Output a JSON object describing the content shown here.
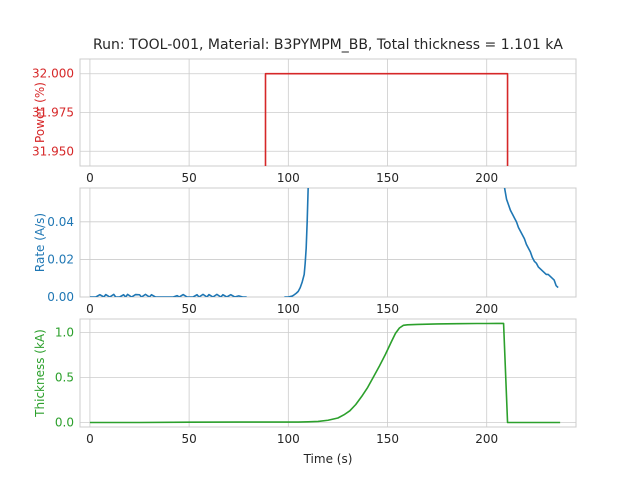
{
  "title": "Run: TOOL-001, Material: B3PYMPM_BB, Total thickness = 1.101 kA",
  "xlabel": "Time (s)",
  "chart_data": [
    {
      "type": "line",
      "ylabel": "Power (%)",
      "color": "#d62728",
      "xlim": [
        -5,
        245
      ],
      "ylim": [
        31.9405,
        32.0095
      ],
      "x_ticks": [
        0,
        50,
        100,
        150,
        200
      ],
      "y_ticks": [
        31.95,
        31.975,
        32.0
      ],
      "y_tick_labels": [
        "31.950",
        "31.975",
        "32.000"
      ],
      "series": [
        {
          "x": [
            88.5,
            88.5,
            209,
            210.5,
            210.5
          ],
          "y": [
            31.9,
            32.0,
            32.0,
            32.0,
            31.9
          ]
        }
      ]
    },
    {
      "type": "line",
      "ylabel": "Rate (A/s)",
      "color": "#1f77b4",
      "xlim": [
        -5,
        245
      ],
      "ylim": [
        0,
        0.058
      ],
      "x_ticks": [
        0,
        50,
        100,
        150,
        200
      ],
      "y_ticks": [
        0.0,
        0.02,
        0.04
      ],
      "y_tick_labels": [
        "0.00",
        "0.02",
        "0.04"
      ],
      "series": [
        {
          "x": [
            0,
            3,
            5,
            7,
            8,
            10,
            12,
            13,
            15,
            17,
            18,
            19,
            21,
            23,
            25,
            26,
            28,
            30,
            31,
            33,
            35,
            37,
            38,
            40,
            42,
            44,
            45,
            47,
            49,
            50,
            52,
            54,
            55,
            57,
            59,
            60,
            62,
            64,
            66,
            67,
            69,
            71,
            73,
            75,
            77,
            79
          ],
          "y": [
            0,
            0,
            0.0012,
            0,
            0.0013,
            0,
            0.0014,
            0,
            0,
            0.0012,
            0,
            0.0014,
            0,
            0.0013,
            0.0012,
            0,
            0.0014,
            0,
            0.0012,
            0,
            0,
            0,
            0,
            0,
            0,
            0.0007,
            0,
            0.0013,
            0,
            0,
            0,
            0.0012,
            0,
            0.0014,
            0,
            0.0013,
            0,
            0.0014,
            0,
            0.0012,
            0,
            0.0012,
            0,
            0.0006,
            0,
            0
          ]
        },
        {
          "x": [
            98,
            100,
            102,
            103,
            104,
            105,
            106,
            107,
            108,
            108.5,
            109,
            109.5,
            110
          ],
          "y": [
            0,
            0,
            0.0005,
            0.0012,
            0.002,
            0.003,
            0.005,
            0.008,
            0.012,
            0.018,
            0.026,
            0.04,
            0.058
          ]
        },
        {
          "x": [
            209,
            210,
            211,
            212,
            213,
            214,
            215,
            216,
            217,
            218,
            219,
            220,
            221,
            222,
            223,
            224,
            225,
            226,
            227,
            228,
            229,
            230,
            231,
            232,
            233,
            234,
            235,
            236
          ],
          "y": [
            0.058,
            0.052,
            0.049,
            0.046,
            0.044,
            0.042,
            0.04,
            0.037,
            0.035,
            0.033,
            0.031,
            0.028,
            0.026,
            0.024,
            0.021,
            0.019,
            0.018,
            0.016,
            0.015,
            0.014,
            0.013,
            0.012,
            0.012,
            0.011,
            0.01,
            0.009,
            0.006,
            0.005
          ]
        }
      ]
    },
    {
      "type": "line",
      "ylabel": "Thickness (kA)",
      "color": "#2ca02c",
      "xlim": [
        -5,
        245
      ],
      "ylim": [
        -0.05,
        1.15
      ],
      "x_ticks": [
        0,
        50,
        100,
        150,
        200
      ],
      "y_ticks": [
        0.0,
        0.5,
        1.0
      ],
      "y_tick_labels": [
        "0.0",
        "0.5",
        "1.0"
      ],
      "series": [
        {
          "x": [
            0,
            25,
            50,
            75,
            100,
            105,
            110,
            115,
            120,
            125,
            128,
            131,
            134,
            137,
            140,
            143,
            146,
            149,
            152,
            154,
            156,
            158,
            160,
            165,
            175,
            185,
            195,
            200,
            205,
            208,
            208.5,
            210.5,
            237
          ],
          "y": [
            0,
            0,
            0.004,
            0.005,
            0.005,
            0.005,
            0.008,
            0.012,
            0.025,
            0.05,
            0.085,
            0.13,
            0.2,
            0.29,
            0.39,
            0.51,
            0.63,
            0.76,
            0.9,
            0.99,
            1.05,
            1.08,
            1.085,
            1.09,
            1.095,
            1.098,
            1.1,
            1.1,
            1.101,
            1.101,
            1.101,
            0.0,
            0.0
          ]
        }
      ]
    }
  ]
}
